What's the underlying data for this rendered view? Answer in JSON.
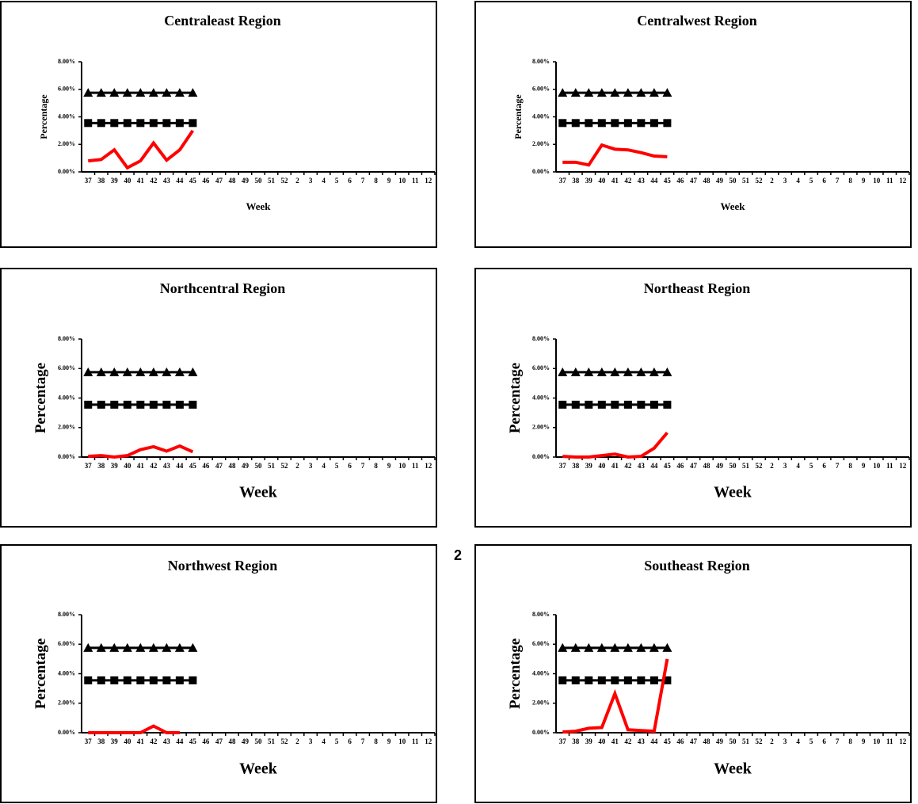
{
  "page_number": "2",
  "chart_data": [
    {
      "type": "line",
      "title": "Centraleast Region",
      "x_label": "Week",
      "y_label": "Percentage",
      "categories": [
        "37",
        "38",
        "39",
        "40",
        "41",
        "42",
        "43",
        "44",
        "45",
        "46",
        "47",
        "48",
        "49",
        "50",
        "51",
        "52",
        "2",
        "3",
        "4",
        "5",
        "6",
        "7",
        "8",
        "9",
        "10",
        "11",
        "12"
      ],
      "ylim": [
        0,
        8
      ],
      "yticks": [
        {
          "value": 0,
          "label": "0.00%"
        },
        {
          "value": 2,
          "label": "2.00%"
        },
        {
          "value": 4,
          "label": "4.00%"
        },
        {
          "value": 6,
          "label": "6.00%"
        },
        {
          "value": 8,
          "label": "8.00%"
        }
      ],
      "series": [
        {
          "color": "#000000",
          "marker": "triangle",
          "values": [
            5.75,
            5.75,
            5.75,
            5.75,
            5.75,
            5.75,
            5.75,
            5.75,
            5.75,
            null,
            null,
            null,
            null,
            null,
            null,
            null,
            null,
            null,
            null,
            null,
            null,
            null,
            null,
            null,
            null,
            null,
            null
          ]
        },
        {
          "color": "#000000",
          "marker": "square",
          "values": [
            3.55,
            3.55,
            3.55,
            3.55,
            3.55,
            3.55,
            3.55,
            3.55,
            3.55,
            null,
            null,
            null,
            null,
            null,
            null,
            null,
            null,
            null,
            null,
            null,
            null,
            null,
            null,
            null,
            null,
            null,
            null
          ]
        },
        {
          "color": "#ff0000",
          "marker": "none",
          "values": [
            0.8,
            0.9,
            1.6,
            0.3,
            0.8,
            2.1,
            0.85,
            1.6,
            3.0,
            null,
            null,
            null,
            null,
            null,
            null,
            null,
            null,
            null,
            null,
            null,
            null,
            null,
            null,
            null,
            null,
            null,
            null
          ]
        }
      ]
    },
    {
      "type": "line",
      "title": "Centralwest Region",
      "x_label": "Week",
      "y_label": "Percentage",
      "categories": [
        "37",
        "38",
        "39",
        "40",
        "41",
        "42",
        "43",
        "44",
        "45",
        "46",
        "47",
        "48",
        "49",
        "50",
        "51",
        "52",
        "2",
        "3",
        "4",
        "5",
        "6",
        "7",
        "8",
        "9",
        "10",
        "11",
        "12"
      ],
      "ylim": [
        0,
        8
      ],
      "yticks": [
        {
          "value": 0,
          "label": "0.00%"
        },
        {
          "value": 2,
          "label": "2.00%"
        },
        {
          "value": 4,
          "label": "4.00%"
        },
        {
          "value": 6,
          "label": "6.00%"
        },
        {
          "value": 8,
          "label": "8.00%"
        }
      ],
      "series": [
        {
          "color": "#000000",
          "marker": "triangle",
          "values": [
            5.75,
            5.75,
            5.75,
            5.75,
            5.75,
            5.75,
            5.75,
            5.75,
            5.75,
            null,
            null,
            null,
            null,
            null,
            null,
            null,
            null,
            null,
            null,
            null,
            null,
            null,
            null,
            null,
            null,
            null,
            null
          ]
        },
        {
          "color": "#000000",
          "marker": "square",
          "values": [
            3.55,
            3.55,
            3.55,
            3.55,
            3.55,
            3.55,
            3.55,
            3.55,
            3.55,
            null,
            null,
            null,
            null,
            null,
            null,
            null,
            null,
            null,
            null,
            null,
            null,
            null,
            null,
            null,
            null,
            null,
            null
          ]
        },
        {
          "color": "#ff0000",
          "marker": "none",
          "values": [
            0.7,
            0.7,
            0.5,
            1.95,
            1.65,
            1.6,
            1.4,
            1.15,
            1.1,
            null,
            null,
            null,
            null,
            null,
            null,
            null,
            null,
            null,
            null,
            null,
            null,
            null,
            null,
            null,
            null,
            null,
            null
          ]
        }
      ]
    },
    {
      "type": "line",
      "title": "Northcentral  Region",
      "x_label": "Week",
      "y_label": "Percentage",
      "categories": [
        "37",
        "38",
        "39",
        "40",
        "41",
        "42",
        "43",
        "44",
        "45",
        "46",
        "47",
        "48",
        "49",
        "50",
        "51",
        "52",
        "2",
        "3",
        "4",
        "5",
        "6",
        "7",
        "8",
        "9",
        "10",
        "11",
        "12"
      ],
      "ylim": [
        0,
        8
      ],
      "yticks": [
        {
          "value": 0,
          "label": "0.00%"
        },
        {
          "value": 2,
          "label": "2.00%"
        },
        {
          "value": 4,
          "label": "4.00%"
        },
        {
          "value": 6,
          "label": "6.00%"
        },
        {
          "value": 8,
          "label": "8.00%"
        }
      ],
      "series": [
        {
          "color": "#000000",
          "marker": "triangle",
          "values": [
            5.75,
            5.75,
            5.75,
            5.75,
            5.75,
            5.75,
            5.75,
            5.75,
            5.75,
            null,
            null,
            null,
            null,
            null,
            null,
            null,
            null,
            null,
            null,
            null,
            null,
            null,
            null,
            null,
            null,
            null,
            null
          ]
        },
        {
          "color": "#000000",
          "marker": "square",
          "values": [
            3.55,
            3.55,
            3.55,
            3.55,
            3.55,
            3.55,
            3.55,
            3.55,
            3.55,
            null,
            null,
            null,
            null,
            null,
            null,
            null,
            null,
            null,
            null,
            null,
            null,
            null,
            null,
            null,
            null,
            null,
            null
          ]
        },
        {
          "color": "#ff0000",
          "marker": "none",
          "values": [
            0.05,
            0.1,
            0,
            0.1,
            0.5,
            0.7,
            0.4,
            0.75,
            0.35,
            null,
            null,
            null,
            null,
            null,
            null,
            null,
            null,
            null,
            null,
            null,
            null,
            null,
            null,
            null,
            null,
            null,
            null
          ]
        }
      ]
    },
    {
      "type": "line",
      "title": "Northeast Region",
      "x_label": "Week",
      "y_label": "Percentage",
      "categories": [
        "37",
        "38",
        "39",
        "40",
        "41",
        "42",
        "43",
        "44",
        "45",
        "46",
        "47",
        "48",
        "49",
        "50",
        "51",
        "52",
        "2",
        "3",
        "4",
        "5",
        "6",
        "7",
        "8",
        "9",
        "10",
        "11",
        "12"
      ],
      "ylim": [
        0,
        8
      ],
      "yticks": [
        {
          "value": 0,
          "label": "0.00%"
        },
        {
          "value": 2,
          "label": "2.00%"
        },
        {
          "value": 4,
          "label": "4.00%"
        },
        {
          "value": 6,
          "label": "6.00%"
        },
        {
          "value": 8,
          "label": "8.00%"
        }
      ],
      "series": [
        {
          "color": "#000000",
          "marker": "triangle",
          "values": [
            5.75,
            5.75,
            5.75,
            5.75,
            5.75,
            5.75,
            5.75,
            5.75,
            5.75,
            null,
            null,
            null,
            null,
            null,
            null,
            null,
            null,
            null,
            null,
            null,
            null,
            null,
            null,
            null,
            null,
            null,
            null
          ]
        },
        {
          "color": "#000000",
          "marker": "square",
          "values": [
            3.55,
            3.55,
            3.55,
            3.55,
            3.55,
            3.55,
            3.55,
            3.55,
            3.55,
            null,
            null,
            null,
            null,
            null,
            null,
            null,
            null,
            null,
            null,
            null,
            null,
            null,
            null,
            null,
            null,
            null,
            null
          ]
        },
        {
          "color": "#ff0000",
          "marker": "none",
          "values": [
            0.05,
            0,
            0,
            0.1,
            0.2,
            0,
            0.05,
            0.6,
            1.65,
            null,
            null,
            null,
            null,
            null,
            null,
            null,
            null,
            null,
            null,
            null,
            null,
            null,
            null,
            null,
            null,
            null,
            null
          ]
        }
      ]
    },
    {
      "type": "line",
      "title": "Northwest Region",
      "x_label": "Week",
      "y_label": "Percentage",
      "categories": [
        "37",
        "38",
        "39",
        "40",
        "41",
        "42",
        "43",
        "44",
        "45",
        "46",
        "47",
        "48",
        "49",
        "50",
        "51",
        "52",
        "2",
        "3",
        "4",
        "5",
        "6",
        "7",
        "8",
        "9",
        "10",
        "11",
        "12"
      ],
      "ylim": [
        0,
        8
      ],
      "yticks": [
        {
          "value": 0,
          "label": "0.00%"
        },
        {
          "value": 2,
          "label": "2.00%"
        },
        {
          "value": 4,
          "label": "4.00%"
        },
        {
          "value": 6,
          "label": "6.00%"
        },
        {
          "value": 8,
          "label": "8.00%"
        }
      ],
      "series": [
        {
          "color": "#000000",
          "marker": "triangle",
          "values": [
            5.75,
            5.75,
            5.75,
            5.75,
            5.75,
            5.75,
            5.75,
            5.75,
            5.75,
            null,
            null,
            null,
            null,
            null,
            null,
            null,
            null,
            null,
            null,
            null,
            null,
            null,
            null,
            null,
            null,
            null,
            null
          ]
        },
        {
          "color": "#000000",
          "marker": "square",
          "values": [
            3.55,
            3.55,
            3.55,
            3.55,
            3.55,
            3.55,
            3.55,
            3.55,
            3.55,
            null,
            null,
            null,
            null,
            null,
            null,
            null,
            null,
            null,
            null,
            null,
            null,
            null,
            null,
            null,
            null,
            null,
            null
          ]
        },
        {
          "color": "#ff0000",
          "marker": "none",
          "values": [
            0,
            0,
            0,
            0,
            0,
            0.45,
            0,
            0,
            null,
            null,
            null,
            null,
            null,
            null,
            null,
            null,
            null,
            null,
            null,
            null,
            null,
            null,
            null,
            null,
            null,
            null,
            null
          ]
        }
      ]
    },
    {
      "type": "line",
      "title": "Southeast Region",
      "x_label": "Week",
      "y_label": "Percentage",
      "categories": [
        "37",
        "38",
        "39",
        "40",
        "41",
        "42",
        "43",
        "44",
        "45",
        "46",
        "47",
        "48",
        "49",
        "50",
        "51",
        "52",
        "2",
        "3",
        "4",
        "5",
        "6",
        "7",
        "8",
        "9",
        "10",
        "11",
        "12"
      ],
      "ylim": [
        0,
        8
      ],
      "yticks": [
        {
          "value": 0,
          "label": "0.00%"
        },
        {
          "value": 2,
          "label": "2.00%"
        },
        {
          "value": 4,
          "label": "4.00%"
        },
        {
          "value": 6,
          "label": "6.00%"
        },
        {
          "value": 8,
          "label": "8.00%"
        }
      ],
      "series": [
        {
          "color": "#000000",
          "marker": "triangle",
          "values": [
            5.75,
            5.75,
            5.75,
            5.75,
            5.75,
            5.75,
            5.75,
            5.75,
            5.75,
            null,
            null,
            null,
            null,
            null,
            null,
            null,
            null,
            null,
            null,
            null,
            null,
            null,
            null,
            null,
            null,
            null,
            null
          ]
        },
        {
          "color": "#000000",
          "marker": "square",
          "values": [
            3.55,
            3.55,
            3.55,
            3.55,
            3.55,
            3.55,
            3.55,
            3.55,
            3.55,
            null,
            null,
            null,
            null,
            null,
            null,
            null,
            null,
            null,
            null,
            null,
            null,
            null,
            null,
            null,
            null,
            null,
            null
          ]
        },
        {
          "color": "#ff0000",
          "marker": "none",
          "values": [
            0.05,
            0.1,
            0.3,
            0.35,
            2.65,
            0.2,
            0.15,
            0.1,
            5.0,
            null,
            null,
            null,
            null,
            null,
            null,
            null,
            null,
            null,
            null,
            null,
            null,
            null,
            null,
            null,
            null,
            null,
            null
          ]
        }
      ]
    }
  ]
}
